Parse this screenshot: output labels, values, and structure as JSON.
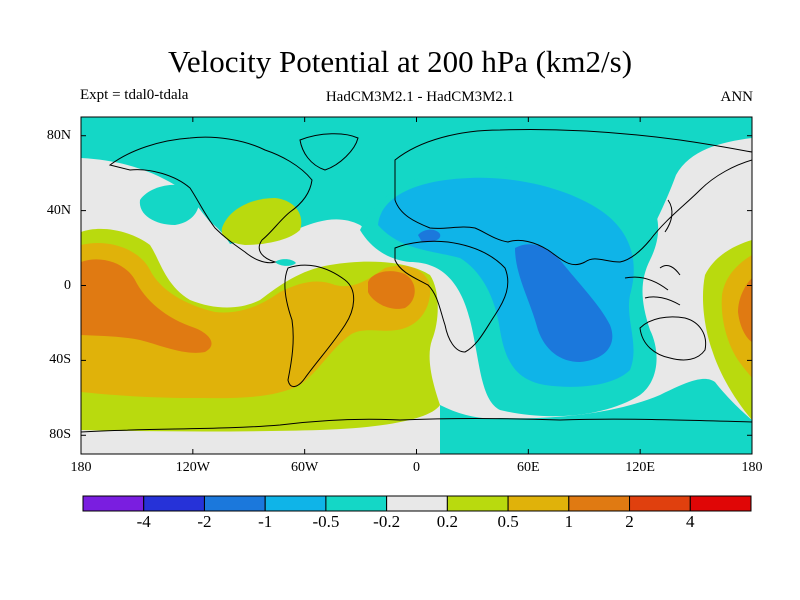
{
  "title": "Velocity Potential at 200 hPa (km2/s)",
  "expt": "Expt = tdal0-tdala",
  "models": "HadCM3M2.1 - HadCM3M2.1",
  "season": "ANN",
  "x_ticks": [
    "180",
    "120W",
    "60W",
    "0",
    "60E",
    "120E",
    "180"
  ],
  "y_ticks": [
    "80N",
    "40N",
    "0",
    "40S",
    "80S"
  ],
  "colorbar": {
    "labels": [
      "-4",
      "-2",
      "-1",
      "-0.5",
      "-0.2",
      "0.2",
      "0.5",
      "1",
      "2",
      "4"
    ],
    "colors": [
      "#7a1ee0",
      "#2632d8",
      "#1b78dc",
      "#0fb4e8",
      "#14d7c6",
      "#e8e8e8",
      "#b9da0e",
      "#e0b20a",
      "#e07a12",
      "#e0400e",
      "#e00606"
    ]
  },
  "colors": {
    "neutral": "#e8e8e8",
    "pos1": "#b9da0e",
    "pos2": "#e0b20a",
    "pos3": "#e07a12",
    "neg1": "#14d7c6",
    "neg2": "#0fb4e8",
    "neg3": "#1b78dc"
  }
}
